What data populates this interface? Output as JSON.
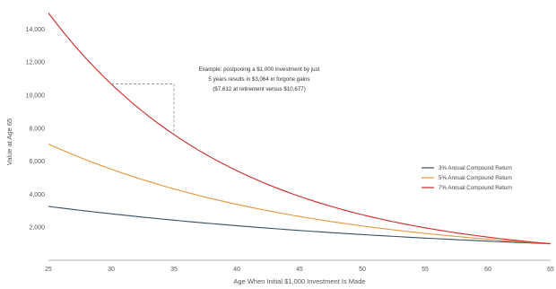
{
  "chart_data": {
    "type": "line",
    "xlabel": "Age When Initial $1,000 Investment Is Made",
    "ylabel": "Value at Age 65",
    "xlim": [
      25,
      65
    ],
    "ylim": [
      0,
      15000
    ],
    "x_ticks": [
      "25",
      "30",
      "35",
      "40",
      "45",
      "50",
      "55",
      "60",
      "65"
    ],
    "y_ticks": [
      "2,000",
      "4,000",
      "6,000",
      "8,000",
      "10,000",
      "12,000",
      "14,000"
    ],
    "y_tick_values": [
      2000,
      4000,
      6000,
      8000,
      10000,
      12000,
      14000
    ],
    "grid": false,
    "legend_position": "right",
    "x": [
      25,
      30,
      35,
      40,
      45,
      50,
      55,
      60,
      65
    ],
    "series": [
      {
        "name": "3% Annual Compound Return",
        "color": "#3b4e5c",
        "values": [
          3262,
          2814,
          2427,
          2094,
          1806,
          1558,
          1344,
          1159,
          1000
        ]
      },
      {
        "name": "5% Annual Compound Return",
        "color": "#e8943a",
        "values": [
          7040,
          5516,
          4322,
          3386,
          2653,
          2079,
          1629,
          1276,
          1000
        ]
      },
      {
        "name": "7% Annual Compound Return",
        "color": "#cc2a2a",
        "values": [
          14974,
          10677,
          7612,
          5427,
          3870,
          2759,
          1967,
          1403,
          1000
        ]
      }
    ],
    "annotation": {
      "lines": [
        "Example: postponing a $1,000 investment by just",
        "5 years results in $3,064 in forgone gains",
        "($7,612 at retirement versus $10,677)"
      ],
      "bracket": {
        "x_from": 30,
        "x_to": 35,
        "y_from": 10677,
        "y_to": 7612
      }
    }
  }
}
